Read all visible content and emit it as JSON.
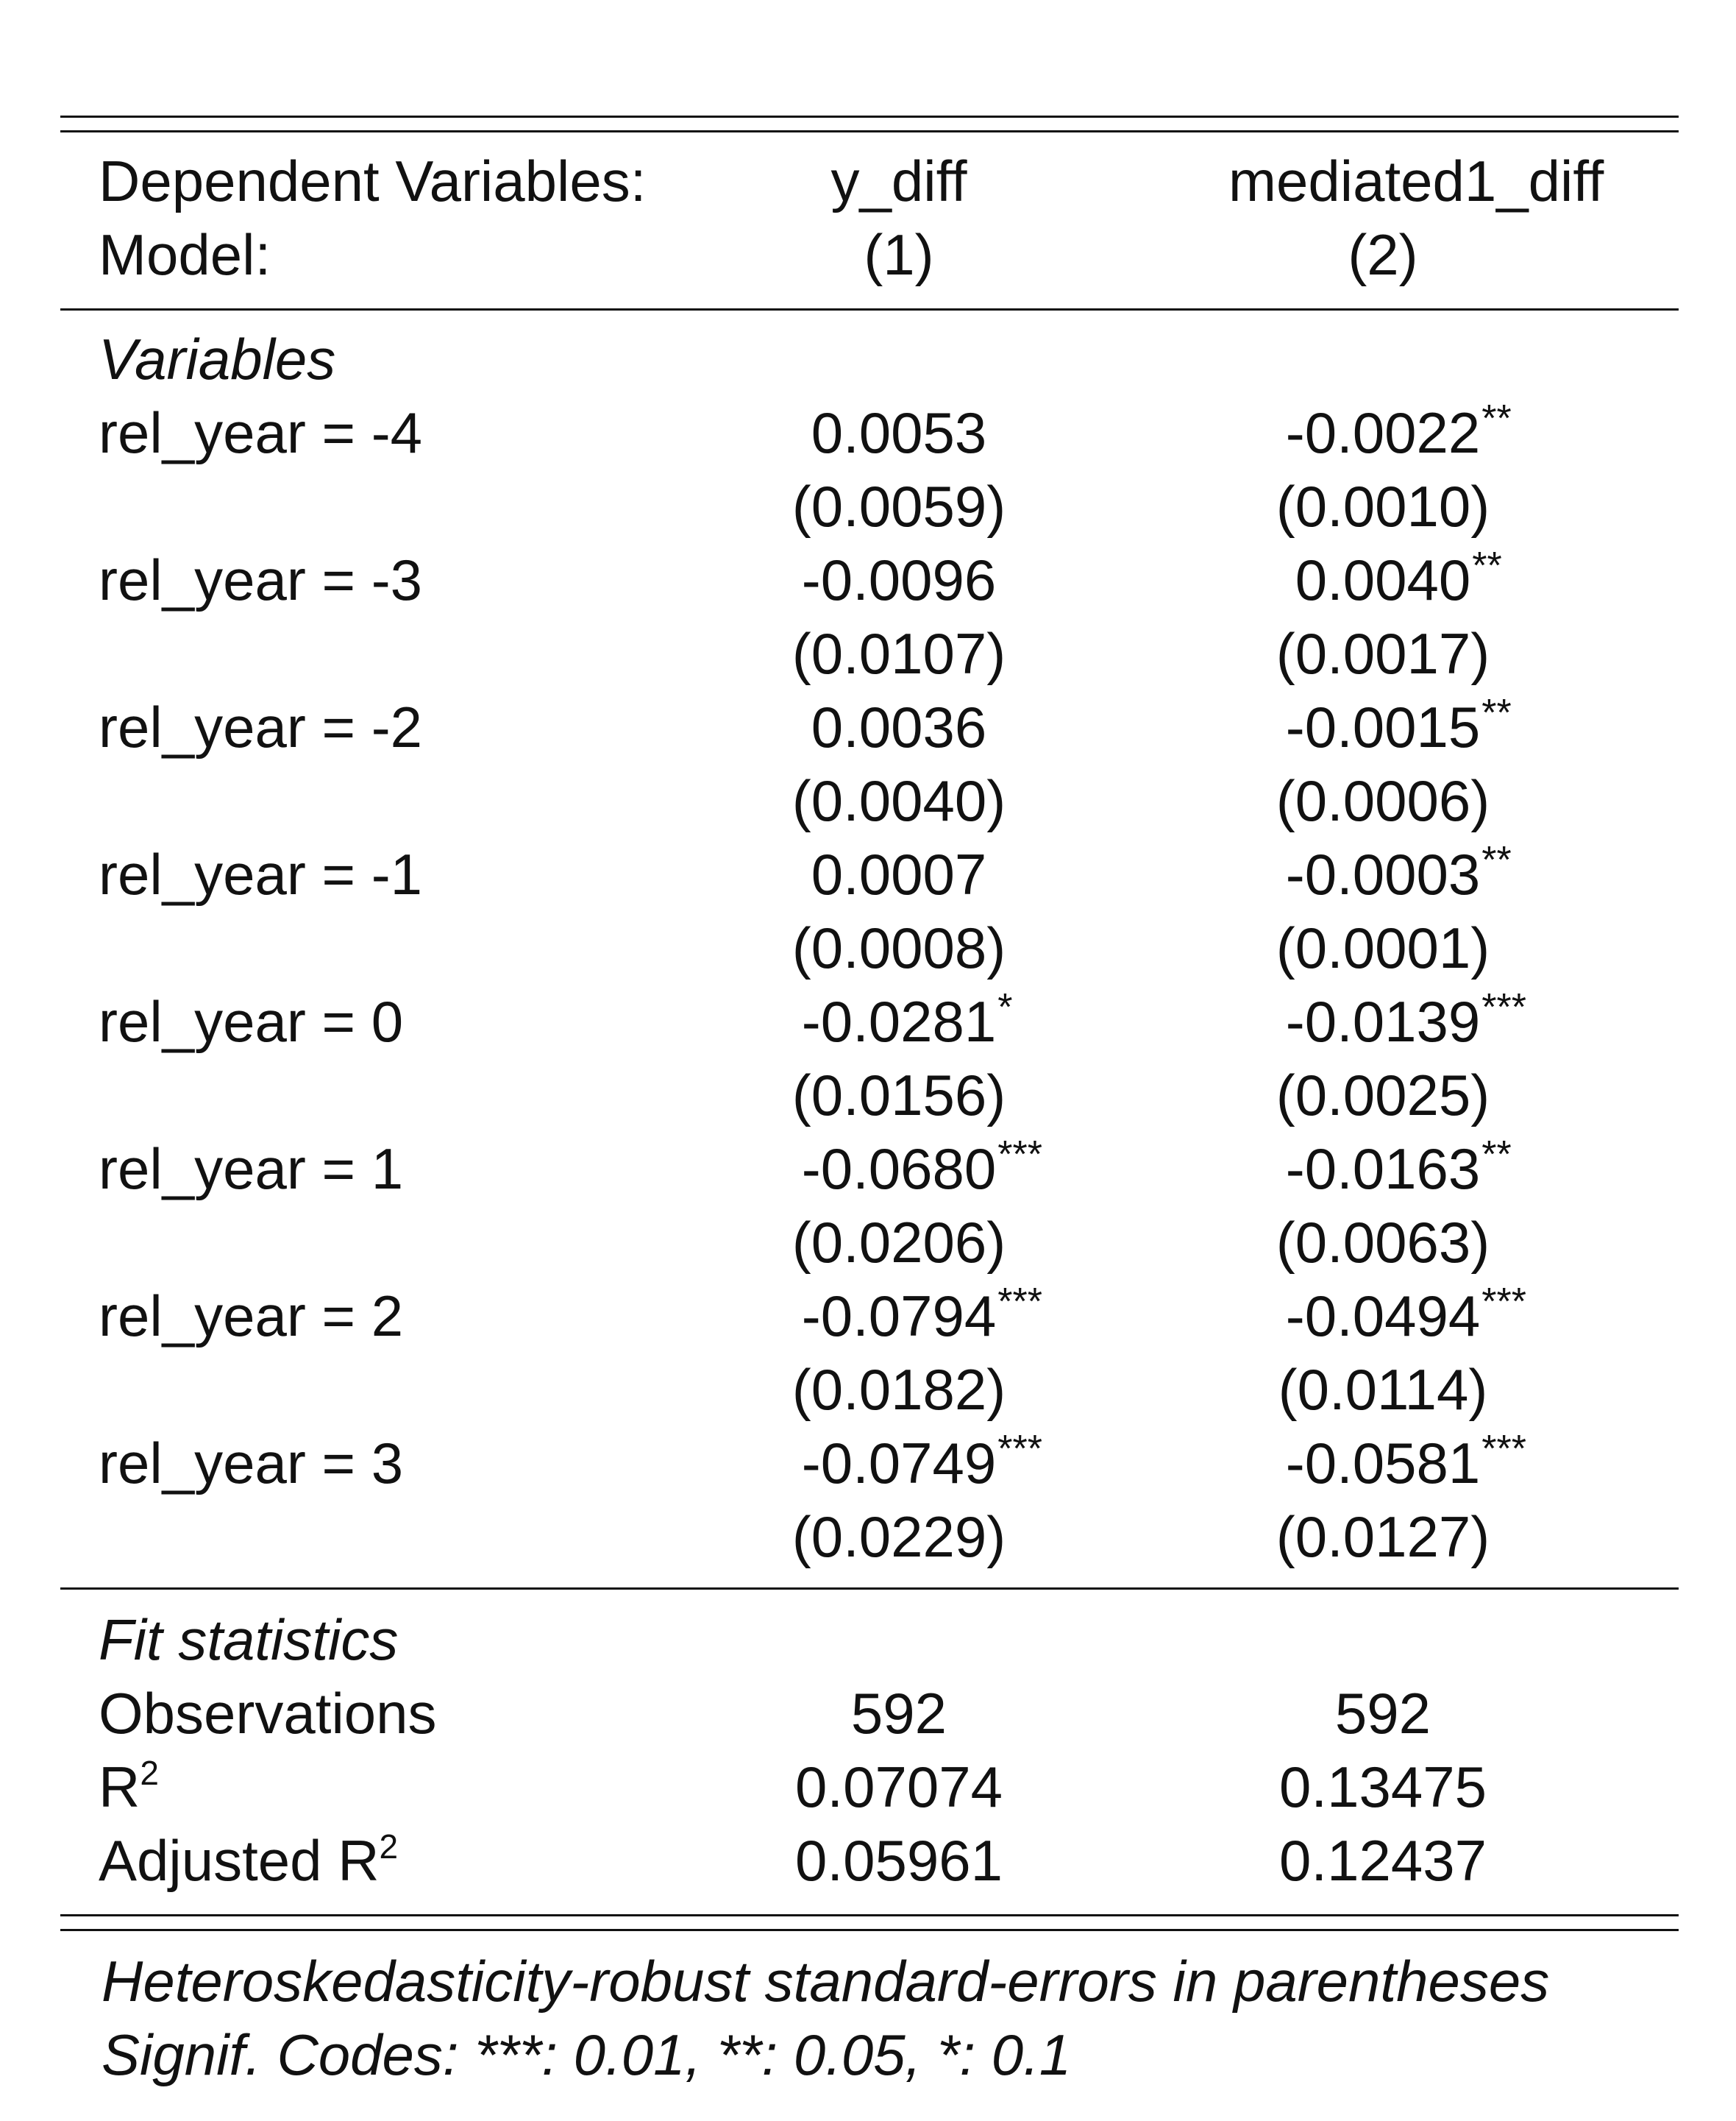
{
  "header": {
    "dep_label": "Dependent Variables:",
    "model_label": "Model:",
    "columns": [
      {
        "dep": "y_diff",
        "model": "(1)"
      },
      {
        "dep": "mediated1_diff",
        "model": "(2)"
      }
    ]
  },
  "variables": {
    "section_label": "Variables",
    "rows": [
      {
        "label": "rel_year = -4",
        "col1": {
          "coef": "0.0053",
          "stars": "",
          "se": "(0.0059)"
        },
        "col2": {
          "coef": "-0.0022",
          "stars": "**",
          "se": "(0.0010)"
        }
      },
      {
        "label": "rel_year = -3",
        "col1": {
          "coef": "-0.0096",
          "stars": "",
          "se": "(0.0107)"
        },
        "col2": {
          "coef": "0.0040",
          "stars": "**",
          "se": "(0.0017)"
        }
      },
      {
        "label": "rel_year = -2",
        "col1": {
          "coef": "0.0036",
          "stars": "",
          "se": "(0.0040)"
        },
        "col2": {
          "coef": "-0.0015",
          "stars": "**",
          "se": "(0.0006)"
        }
      },
      {
        "label": "rel_year = -1",
        "col1": {
          "coef": "0.0007",
          "stars": "",
          "se": "(0.0008)"
        },
        "col2": {
          "coef": "-0.0003",
          "stars": "**",
          "se": "(0.0001)"
        }
      },
      {
        "label": "rel_year = 0",
        "col1": {
          "coef": "-0.0281",
          "stars": "*",
          "se": "(0.0156)"
        },
        "col2": {
          "coef": "-0.0139",
          "stars": "***",
          "se": "(0.0025)"
        }
      },
      {
        "label": "rel_year = 1",
        "col1": {
          "coef": "-0.0680",
          "stars": "***",
          "se": "(0.0206)"
        },
        "col2": {
          "coef": "-0.0163",
          "stars": "**",
          "se": "(0.0063)"
        }
      },
      {
        "label": "rel_year = 2",
        "col1": {
          "coef": "-0.0794",
          "stars": "***",
          "se": "(0.0182)"
        },
        "col2": {
          "coef": "-0.0494",
          "stars": "***",
          "se": "(0.0114)"
        }
      },
      {
        "label": "rel_year = 3",
        "col1": {
          "coef": "-0.0749",
          "stars": "***",
          "se": "(0.0229)"
        },
        "col2": {
          "coef": "-0.0581",
          "stars": "***",
          "se": "(0.0127)"
        }
      }
    ]
  },
  "fit": {
    "section_label": "Fit statistics",
    "observations": {
      "label": "Observations",
      "col1": "592",
      "col2": "592"
    },
    "r2": {
      "label": "R",
      "sup": "2",
      "col1": "0.07074",
      "col2": "0.13475"
    },
    "adj_r2": {
      "label": "Adjusted R",
      "sup": "2",
      "col1": "0.05961",
      "col2": "0.12437"
    }
  },
  "notes": {
    "line1": "Heteroskedasticity-robust standard-errors in parentheses",
    "line2": "Signif. Codes: ***: 0.01, **: 0.05, *: 0.1"
  }
}
